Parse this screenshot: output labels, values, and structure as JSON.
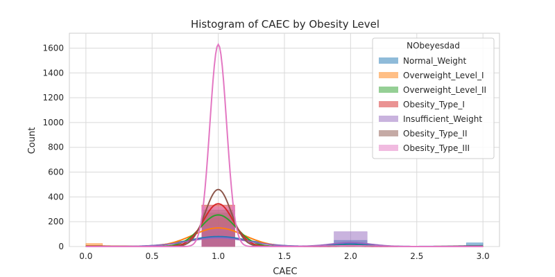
{
  "chart_data": {
    "type": "histogram",
    "title": "Histogram of CAEC by Obesity Level",
    "xlabel": "CAEC",
    "ylabel": "Count",
    "xlim": [
      -0.125,
      3.125
    ],
    "ylim": [
      0,
      1720
    ],
    "xticks": [
      0.0,
      0.5,
      1.0,
      1.5,
      2.0,
      2.5,
      3.0
    ],
    "xtick_labels": [
      "0.0",
      "0.5",
      "1.0",
      "1.5",
      "2.0",
      "2.5",
      "3.0"
    ],
    "yticks": [
      0,
      200,
      400,
      600,
      800,
      1000,
      1200,
      1400,
      1600
    ],
    "ytick_labels": [
      "0",
      "200",
      "400",
      "600",
      "800",
      "1000",
      "1200",
      "1400",
      "1600"
    ],
    "grid": true,
    "legend": {
      "title": "NObeyesdad",
      "placement": "upper-right"
    },
    "bin_width": 0.25,
    "bins": [
      0.0,
      1.0,
      2.0,
      3.0
    ],
    "series": [
      {
        "name": "Normal_Weight",
        "color": "#1f77b4",
        "counts": [
          10,
          120,
          50,
          30
        ],
        "kde_peak": 80
      },
      {
        "name": "Overweight_Level_I",
        "color": "#ff7f0e",
        "counts": [
          25,
          230,
          15,
          10
        ],
        "kde_peak": 150
      },
      {
        "name": "Overweight_Level_II",
        "color": "#2ca02c",
        "counts": [
          5,
          270,
          15,
          2
        ],
        "kde_peak": 255
      },
      {
        "name": "Obesity_Type_I",
        "color": "#d62728",
        "counts": [
          5,
          335,
          5,
          2
        ],
        "kde_peak": 345
      },
      {
        "name": "Insufficient_Weight",
        "color": "#9467bd",
        "counts": [
          5,
          160,
          120,
          5
        ],
        "kde_peak": 70
      },
      {
        "name": "Obesity_Type_II",
        "color": "#8c564b",
        "counts": [
          3,
          295,
          3,
          2
        ],
        "kde_peak": 460
      },
      {
        "name": "Obesity_Type_III",
        "color": "#e377c2",
        "counts": [
          0,
          320,
          2,
          0
        ],
        "kde_peak": 1630
      }
    ]
  }
}
